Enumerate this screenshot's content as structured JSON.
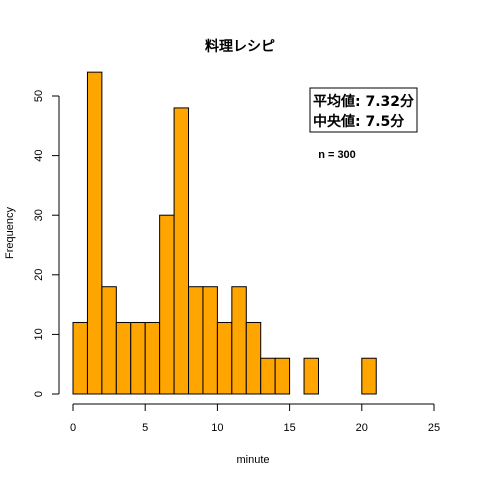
{
  "chart_data": {
    "type": "bar",
    "title": "料理レシピ",
    "xlabel": "minute",
    "ylabel": "Frequency",
    "bin_width": 1,
    "bins": [
      {
        "x0": 0,
        "x1": 1,
        "count": 12
      },
      {
        "x0": 1,
        "x1": 2,
        "count": 54
      },
      {
        "x0": 2,
        "x1": 3,
        "count": 18
      },
      {
        "x0": 3,
        "x1": 4,
        "count": 12
      },
      {
        "x0": 4,
        "x1": 5,
        "count": 12
      },
      {
        "x0": 5,
        "x1": 6,
        "count": 12
      },
      {
        "x0": 6,
        "x1": 7,
        "count": 30
      },
      {
        "x0": 7,
        "x1": 8,
        "count": 48
      },
      {
        "x0": 8,
        "x1": 9,
        "count": 18
      },
      {
        "x0": 9,
        "x1": 10,
        "count": 18
      },
      {
        "x0": 10,
        "x1": 11,
        "count": 12
      },
      {
        "x0": 11,
        "x1": 12,
        "count": 18
      },
      {
        "x0": 12,
        "x1": 13,
        "count": 12
      },
      {
        "x0": 13,
        "x1": 14,
        "count": 6
      },
      {
        "x0": 14,
        "x1": 15,
        "count": 6
      },
      {
        "x0": 15,
        "x1": 16,
        "count": 0
      },
      {
        "x0": 16,
        "x1": 17,
        "count": 6
      },
      {
        "x0": 17,
        "x1": 18,
        "count": 0
      },
      {
        "x0": 18,
        "x1": 19,
        "count": 0
      },
      {
        "x0": 19,
        "x1": 20,
        "count": 0
      },
      {
        "x0": 20,
        "x1": 21,
        "count": 6
      },
      {
        "x0": 21,
        "x1": 22,
        "count": 0
      },
      {
        "x0": 22,
        "x1": 23,
        "count": 0
      },
      {
        "x0": 23,
        "x1": 24,
        "count": 0
      },
      {
        "x0": 24,
        "x1": 25,
        "count": 0
      }
    ],
    "xlim": [
      0,
      25
    ],
    "ylim": [
      0,
      54
    ],
    "x_ticks": [
      0,
      5,
      10,
      15,
      20,
      25
    ],
    "y_ticks": [
      0,
      10,
      20,
      30,
      40,
      50
    ],
    "bar_color": "#FFA500",
    "bar_edge_color": "#000000",
    "grid": false,
    "legend": "none",
    "annotations": {
      "stats_box": [
        "平均値: 7.32分",
        "中央値: 7.5分"
      ],
      "n_label": "n = 300"
    }
  }
}
